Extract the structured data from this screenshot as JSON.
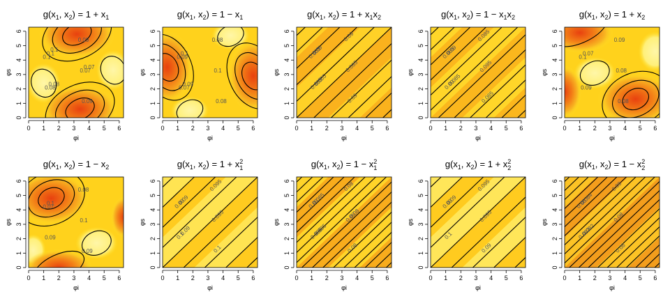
{
  "chart_data": [
    {
      "type": "heatmap",
      "title": "g(x1, x2) = 1 + x1",
      "title_parts": {
        "fn": "g(x",
        "a": "1",
        "mid": ", x",
        "b": "2",
        "rhs": ") = 1 + x",
        "sub": "1",
        "sup": ""
      },
      "xlabel": "φi",
      "ylabel": "φs",
      "xlim": [
        0,
        6.283
      ],
      "ylim": [
        0,
        6.283
      ],
      "xticks": [
        0,
        1,
        2,
        3,
        4,
        5,
        6
      ],
      "yticks": [
        0,
        1,
        2,
        3,
        4,
        5,
        6
      ],
      "contour_labels": [
        "0.1",
        "0.09",
        "0.08",
        "0.07",
        "0.1",
        "0.09",
        "0.08",
        "0.07",
        "0.1"
      ]
    },
    {
      "type": "heatmap",
      "title": "g(x1, x2) = 1 − x1",
      "title_parts": {
        "fn": "g(x",
        "a": "1",
        "mid": ", x",
        "b": "2",
        "rhs": ") = 1 − x",
        "sub": "1",
        "sup": ""
      },
      "xlabel": "φi",
      "ylabel": "φs",
      "xlim": [
        0,
        6.283
      ],
      "ylim": [
        0,
        6.283
      ],
      "xticks": [
        0,
        1,
        2,
        3,
        4,
        5,
        6
      ],
      "yticks": [
        0,
        1,
        2,
        3,
        4,
        5,
        6
      ],
      "contour_labels": [
        "0.09",
        "0.08",
        "0.07",
        "0.1",
        "0.1",
        "0.08",
        "0.09"
      ]
    },
    {
      "type": "heatmap",
      "title": "g(x1, x2) = 1 + x1x2",
      "title_parts": {
        "fn": "g(x",
        "a": "1",
        "mid": ", x",
        "b": "2",
        "rhs": ") = 1 + x",
        "sub": "1",
        "sup": "",
        "rhs2": "x",
        "sub2": "2"
      },
      "xlabel": "φi",
      "ylabel": "φs",
      "xlim": [
        0,
        6.283
      ],
      "ylim": [
        0,
        6.283
      ],
      "xticks": [
        0,
        1,
        2,
        3,
        4,
        5,
        6
      ],
      "yticks": [
        0,
        1,
        2,
        3,
        4,
        5,
        6
      ],
      "contour_labels": [
        "0.085",
        "0.09",
        "0.095",
        "0.085",
        "0.09",
        "0.09",
        "0.085"
      ]
    },
    {
      "type": "heatmap",
      "title": "g(x1, x2) = 1 − x1x2",
      "title_parts": {
        "fn": "g(x",
        "a": "1",
        "mid": ", x",
        "b": "2",
        "rhs": ") = 1 − x",
        "sub": "1",
        "sup": "",
        "rhs2": "x",
        "sub2": "2"
      },
      "xlabel": "φi",
      "ylabel": "φs",
      "xlim": [
        0,
        6.283
      ],
      "ylim": [
        0,
        6.283
      ],
      "xticks": [
        0,
        1,
        2,
        3,
        4,
        5,
        6
      ],
      "yticks": [
        0,
        1,
        2,
        3,
        4,
        5,
        6
      ],
      "contour_labels": [
        "0.085",
        "0.085",
        "0.09",
        "0.095",
        "0.09",
        "0.085",
        "0.085"
      ]
    },
    {
      "type": "heatmap",
      "title": "g(x1, x2) = 1 + x2",
      "title_parts": {
        "fn": "g(x",
        "a": "1",
        "mid": ", x",
        "b": "2",
        "rhs": ") = 1 + x",
        "sub": "2",
        "sup": ""
      },
      "xlabel": "φi",
      "ylabel": "φs",
      "xlim": [
        0,
        6.283
      ],
      "ylim": [
        0,
        6.283
      ],
      "xticks": [
        0,
        1,
        2,
        3,
        4,
        5,
        6
      ],
      "yticks": [
        0,
        1,
        2,
        3,
        4,
        5,
        6
      ],
      "contour_labels": [
        "0.1",
        "0.09",
        "0.09",
        "0.08",
        "0.07",
        "0.08"
      ]
    },
    {
      "type": "heatmap",
      "title": "g(x1, x2) = 1 − x2",
      "title_parts": {
        "fn": "g(x",
        "a": "1",
        "mid": ", x",
        "b": "2",
        "rhs": ") = 1 − x",
        "sub": "2",
        "sup": ""
      },
      "xlabel": "φi",
      "ylabel": "φs",
      "xlim": [
        0,
        6.283
      ],
      "ylim": [
        0,
        6.283
      ],
      "xticks": [
        0,
        1,
        2,
        3,
        4,
        5,
        6
      ],
      "yticks": [
        0,
        1,
        2,
        3,
        4,
        5,
        6
      ],
      "contour_labels": [
        "0.07",
        "0.08",
        "0.09",
        "0.1",
        "0.1",
        "0.09"
      ]
    },
    {
      "type": "heatmap",
      "title": "g(x1, x2) = 1 + x1²",
      "title_parts": {
        "fn": "g(x",
        "a": "1",
        "mid": ", x",
        "b": "2",
        "rhs": ") = 1 + x",
        "sub": "1",
        "sup": "2"
      },
      "xlabel": "φi",
      "ylabel": "φs",
      "xlim": [
        0,
        6.283
      ],
      "ylim": [
        0,
        6.283
      ],
      "xticks": [
        0,
        1,
        2,
        3,
        4,
        5,
        6
      ],
      "yticks": [
        0,
        1,
        2,
        3,
        4,
        5,
        6
      ],
      "contour_labels": [
        "0.09",
        "0.095",
        "0.1",
        "0.095",
        "0.09",
        "0.1",
        "0.09"
      ]
    },
    {
      "type": "heatmap",
      "title": "g(x1, x2) = 1 − x1²",
      "title_parts": {
        "fn": "g(x",
        "a": "1",
        "mid": ", x",
        "b": "2",
        "rhs": ") = 1 − x",
        "sub": "1",
        "sup": "2"
      },
      "xlabel": "φi",
      "ylabel": "φs",
      "xlim": [
        0,
        6.283
      ],
      "ylim": [
        0,
        6.283
      ],
      "xticks": [
        0,
        1,
        2,
        3,
        4,
        5,
        6
      ],
      "yticks": [
        0,
        1,
        2,
        3,
        4,
        5,
        6
      ],
      "contour_labels": [
        "0.09",
        "0.08",
        "0.085",
        "0.09",
        "0.085",
        "0.08",
        "0.085",
        "0.08"
      ]
    },
    {
      "type": "heatmap",
      "title": "g(x1, x2) = 1 + x2²",
      "title_parts": {
        "fn": "g(x",
        "a": "1",
        "mid": ", x",
        "b": "2",
        "rhs": ") = 1 + x",
        "sub": "2",
        "sup": "2"
      },
      "xlabel": "φi",
      "ylabel": "φs",
      "xlim": [
        0,
        6.283
      ],
      "ylim": [
        0,
        6.283
      ],
      "xticks": [
        0,
        1,
        2,
        3,
        4,
        5,
        6
      ],
      "yticks": [
        0,
        1,
        2,
        3,
        4,
        5,
        6
      ],
      "contour_labels": [
        "0.09",
        "0.095",
        "0.1",
        "0.095",
        "0.09",
        "0.09"
      ]
    },
    {
      "type": "heatmap",
      "title": "g(x1, x2) = 1 − x2²",
      "title_parts": {
        "fn": "g(x",
        "a": "1",
        "mid": ", x",
        "b": "2",
        "rhs": ") = 1 − x",
        "sub": "2",
        "sup": "2"
      },
      "xlabel": "φi",
      "ylabel": "φs",
      "xlim": [
        0,
        6.283
      ],
      "ylim": [
        0,
        6.283
      ],
      "xticks": [
        0,
        1,
        2,
        3,
        4,
        5,
        6
      ],
      "yticks": [
        0,
        1,
        2,
        3,
        4,
        5,
        6
      ],
      "contour_labels": [
        "0.08",
        "0.09",
        "0.082",
        "0.08",
        "0.084",
        "0.08",
        "0.082"
      ]
    }
  ]
}
